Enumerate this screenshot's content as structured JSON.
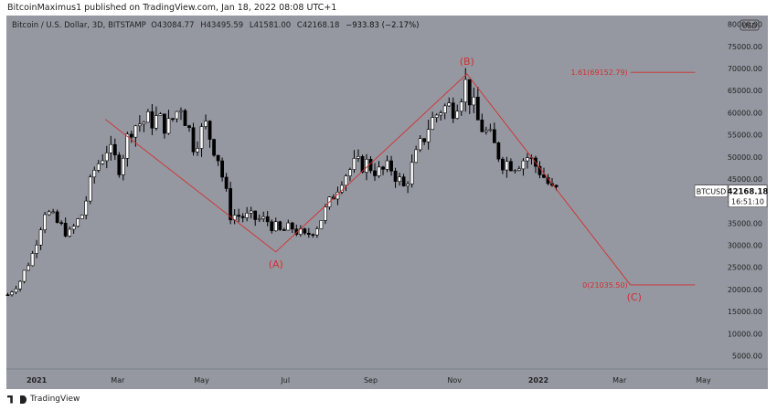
{
  "header": {
    "text": "BitcoinMaximus1 published on TradingView.com, Jan 18, 2022 08:08 UTC+1"
  },
  "symbol": {
    "name": "Bitcoin / U.S. Dollar, 3D, BITSTAMP",
    "o_label": "O",
    "o": "43084.77",
    "h_label": "H",
    "h": "43495.59",
    "l_label": "L",
    "l": "41581.00",
    "c_label": "C",
    "c": "42168.18",
    "change": "−933.83 (−2.17%)"
  },
  "footer": {
    "brand": "TradingView"
  },
  "chart_data": {
    "type": "candlestick",
    "currency": "USD",
    "y_axis": {
      "ticks": [
        5000,
        10000,
        15000,
        20000,
        25000,
        30000,
        35000,
        40000,
        45000,
        50000,
        55000,
        60000,
        65000,
        70000,
        75000,
        80000
      ],
      "tick_labels": [
        "5000.00",
        "10000.00",
        "15000.00",
        "20000.00",
        "25000.00",
        "30000.00",
        "35000.00",
        "40000.00",
        "45000.00",
        "50000.00",
        "55000.00",
        "60000.00",
        "65000.00",
        "70000.00",
        "75000.00",
        "80000.00"
      ],
      "ylim": [
        2000,
        82000
      ]
    },
    "x_axis": {
      "labels": [
        "2021",
        "Mar",
        "May",
        "Jul",
        "Sep",
        "Nov",
        "2022",
        "Mar",
        "May"
      ],
      "bold_labels": [
        "2021",
        "2022"
      ],
      "label_dates": [
        "2021-01-01",
        "2021-03-01",
        "2021-05-01",
        "2021-07-01",
        "2021-09-01",
        "2021-11-01",
        "2022-01-01",
        "2022-03-01",
        "2022-05-01"
      ]
    },
    "price_series": [
      [
        "2020-12-11",
        18800
      ],
      [
        "2020-12-20",
        22000
      ],
      [
        "2020-12-29",
        28000
      ],
      [
        "2021-01-07",
        38000
      ],
      [
        "2021-01-16",
        35000
      ],
      [
        "2021-01-25",
        32500
      ],
      [
        "2021-02-03",
        37000
      ],
      [
        "2021-02-12",
        47000
      ],
      [
        "2021-02-21",
        52000
      ],
      [
        "2021-03-02",
        48000
      ],
      [
        "2021-03-11",
        57000
      ],
      [
        "2021-03-20",
        58000
      ],
      [
        "2021-03-29",
        58500
      ],
      [
        "2021-04-07",
        57000
      ],
      [
        "2021-04-16",
        62000
      ],
      [
        "2021-04-25",
        53000
      ],
      [
        "2021-05-04",
        57000
      ],
      [
        "2021-05-13",
        50000
      ],
      [
        "2021-05-22",
        37000
      ],
      [
        "2021-05-31",
        36500
      ],
      [
        "2021-06-09",
        36000
      ],
      [
        "2021-06-18",
        35500
      ],
      [
        "2021-06-27",
        33000
      ],
      [
        "2021-07-06",
        34000
      ],
      [
        "2021-07-15",
        31800
      ],
      [
        "2021-07-24",
        34500
      ],
      [
        "2021-08-02",
        39500
      ],
      [
        "2021-08-11",
        45500
      ],
      [
        "2021-08-20",
        48000
      ],
      [
        "2021-08-29",
        48500
      ],
      [
        "2021-09-07",
        46500
      ],
      [
        "2021-09-16",
        47500
      ],
      [
        "2021-09-25",
        43000
      ],
      [
        "2021-10-04",
        50000
      ],
      [
        "2021-10-13",
        57000
      ],
      [
        "2021-10-22",
        61000
      ],
      [
        "2021-10-31",
        61500
      ],
      [
        "2021-11-09",
        66500
      ],
      [
        "2021-11-18",
        58000
      ],
      [
        "2021-11-27",
        54000
      ],
      [
        "2021-12-06",
        49000
      ],
      [
        "2021-12-15",
        48500
      ],
      [
        "2021-12-24",
        50000
      ],
      [
        "2022-01-02",
        47000
      ],
      [
        "2022-01-11",
        42500
      ],
      [
        "2022-01-17",
        42168
      ]
    ],
    "wave_line": {
      "points": [
        [
          "2021-02-20",
          58500
        ],
        [
          "2021-06-24",
          28500
        ],
        [
          "2021-11-10",
          68800
        ],
        [
          "2022-03-09",
          21000
        ]
      ],
      "color": "#d32f2f"
    },
    "wave_labels": [
      {
        "text": "(A)",
        "date": "2021-06-24",
        "value": 28500
      },
      {
        "text": "(B)",
        "date": "2021-11-10",
        "value": 68800
      },
      {
        "text": "(C)",
        "date": "2022-03-09",
        "value": 21000
      }
    ],
    "fib_levels": [
      {
        "label": "1.61(69152.79)",
        "value": 69152.79,
        "from_date": "2022-02-25",
        "to_date": "2022-04-25"
      },
      {
        "label": "0(21035.50)",
        "value": 21035.5,
        "from_date": "2022-02-25",
        "to_date": "2022-04-25"
      }
    ],
    "last_price": {
      "symbol": "BTCUSD",
      "value": "42168.18",
      "countdown": "16:51:10"
    },
    "colors": {
      "background": "#9598a1",
      "up": "#ffffff",
      "down": "#000000",
      "annotation": "#d32f2f"
    }
  }
}
